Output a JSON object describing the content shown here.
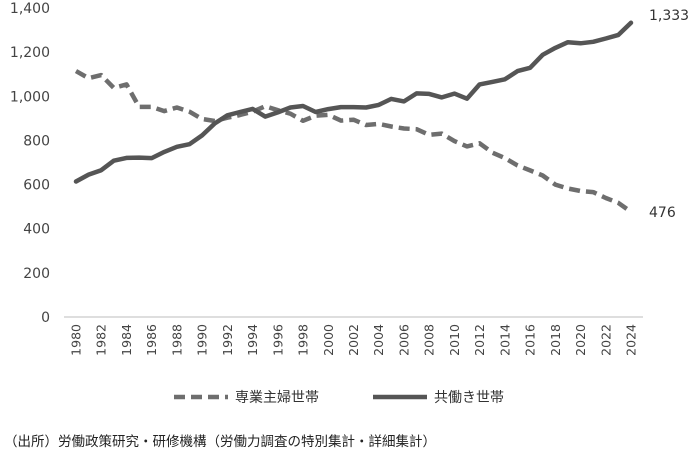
{
  "chart_data": {
    "type": "line",
    "x": [
      1980,
      1981,
      1982,
      1983,
      1984,
      1985,
      1986,
      1987,
      1988,
      1989,
      1990,
      1991,
      1992,
      1993,
      1994,
      1995,
      1996,
      1997,
      1998,
      1999,
      2000,
      2001,
      2002,
      2003,
      2004,
      2005,
      2006,
      2007,
      2008,
      2009,
      2010,
      2011,
      2012,
      2013,
      2014,
      2015,
      2016,
      2017,
      2018,
      2019,
      2020,
      2021,
      2022,
      2023,
      2024
    ],
    "x_tick_labels": [
      "1980",
      "1982",
      "1984",
      "1986",
      "1988",
      "1990",
      "1992",
      "1994",
      "1996",
      "1998",
      "2000",
      "2002",
      "2004",
      "2006",
      "2008",
      "2010",
      "2012",
      "2014",
      "2016",
      "2018",
      "2020",
      "2022",
      "2024"
    ],
    "y_tick_labels": [
      "0",
      "200",
      "400",
      "600",
      "800",
      "1,000",
      "1,200",
      "1,400"
    ],
    "ylim": [
      0,
      1400
    ],
    "series": [
      {
        "name": "専業主婦世帯",
        "style": "dashed",
        "color": "#6e6e6e",
        "end_label": "476",
        "values": [
          1114,
          1082,
          1096,
          1038,
          1054,
          952,
          952,
          933,
          949,
          930,
          897,
          888,
          903,
          915,
          930,
          955,
          937,
          921,
          889,
          912,
          916,
          890,
          894,
          870,
          875,
          863,
          854,
          851,
          825,
          831,
          797,
          773,
          787,
          745,
          720,
          687,
          664,
          641,
          600,
          582,
          571,
          566,
          539,
          517,
          476
        ]
      },
      {
        "name": "共働き世帯",
        "style": "solid",
        "color": "#555555",
        "end_label": "1,333",
        "values": [
          614,
          645,
          665,
          708,
          721,
          722,
          720,
          748,
          771,
          783,
          823,
          877,
          914,
          929,
          943,
          908,
          927,
          949,
          956,
          929,
          942,
          951,
          951,
          949,
          961,
          988,
          977,
          1013,
          1011,
          995,
          1012,
          989,
          1054,
          1065,
          1077,
          1114,
          1129,
          1188,
          1219,
          1245,
          1240,
          1247,
          1262,
          1278,
          1333
        ]
      }
    ],
    "legend": "bottom",
    "grid": false
  },
  "footer": {
    "source": "（出所）労働政策研究・研修機構（労働力調査の特別集計・詳細集計）"
  }
}
